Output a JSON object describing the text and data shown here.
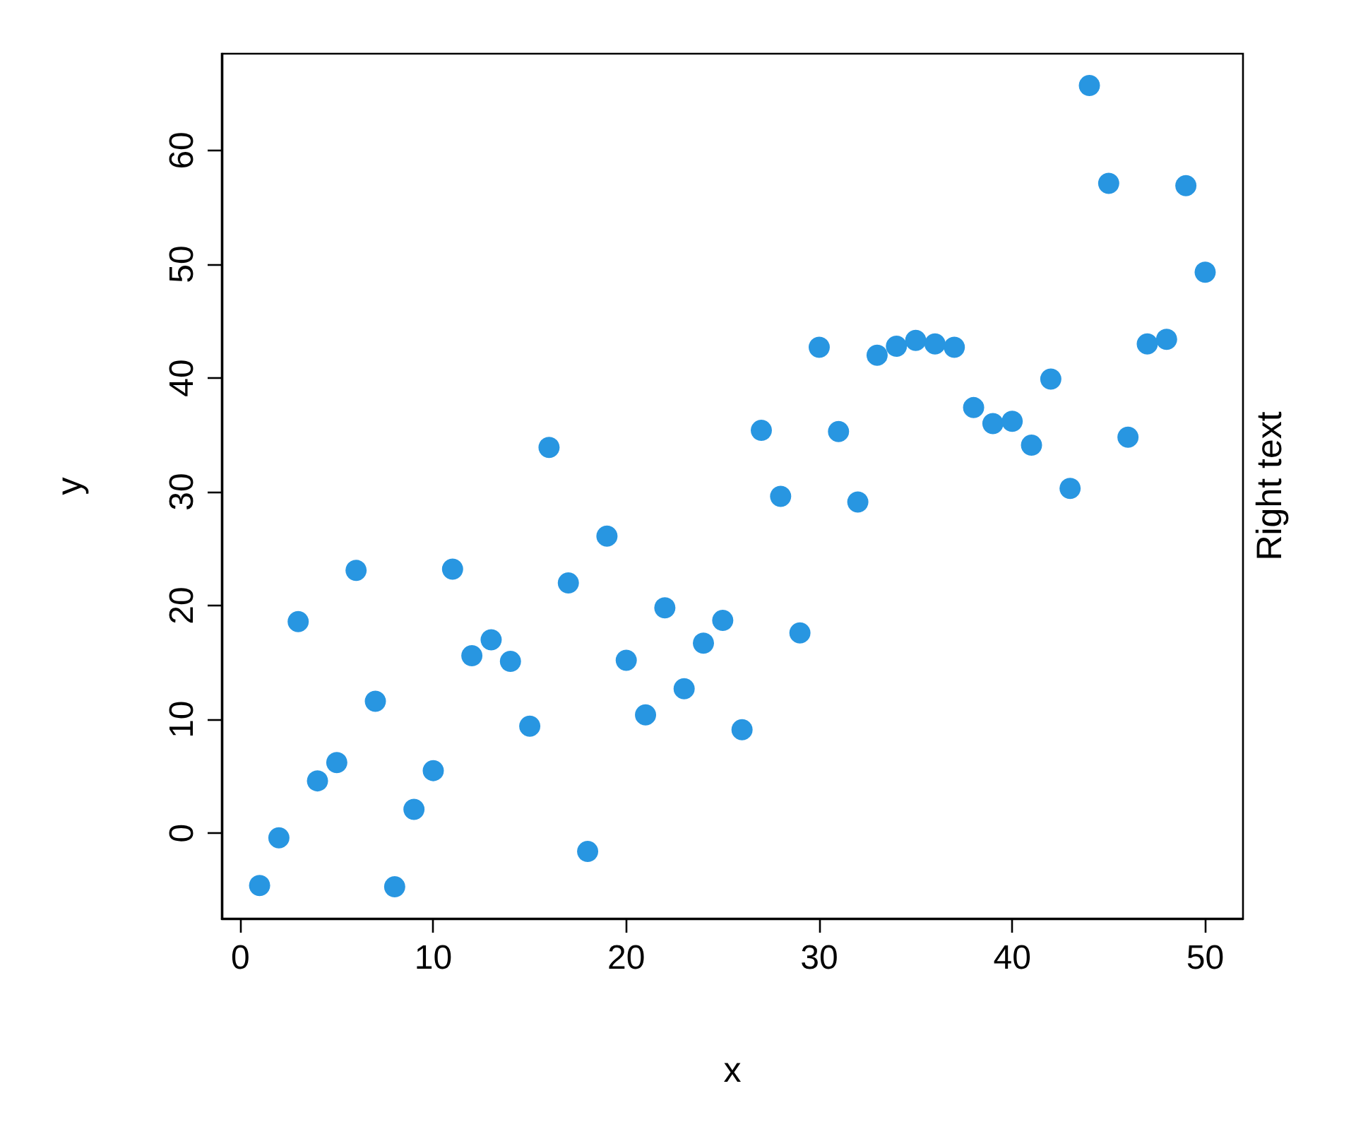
{
  "chart_data": {
    "type": "scatter",
    "xlabel": "x",
    "ylabel": "y",
    "annotations": [
      "Right text"
    ],
    "x": [
      1,
      2,
      3,
      4,
      5,
      6,
      7,
      8,
      9,
      10,
      11,
      12,
      13,
      14,
      15,
      16,
      17,
      18,
      19,
      20,
      21,
      22,
      23,
      24,
      25,
      26,
      27,
      28,
      29,
      30,
      31,
      32,
      33,
      34,
      35,
      36,
      37,
      38,
      39,
      40,
      41,
      42,
      43,
      44,
      45,
      46,
      47,
      48,
      49,
      50
    ],
    "values": [
      -4.6,
      -0.4,
      18.6,
      4.6,
      6.2,
      23.1,
      11.6,
      -4.7,
      2.1,
      5.5,
      23.2,
      15.6,
      17.0,
      15.1,
      9.4,
      33.9,
      22.0,
      -1.6,
      26.1,
      15.2,
      10.4,
      19.8,
      12.7,
      16.7,
      18.7,
      9.1,
      35.4,
      29.6,
      17.6,
      42.7,
      35.3,
      29.1,
      42.0,
      42.8,
      43.3,
      43.0,
      42.7,
      37.4,
      36.0,
      36.2,
      34.1,
      39.9,
      30.3,
      65.7,
      57.1,
      34.8,
      43.0,
      43.4,
      56.9,
      49.3
    ],
    "color": "#2896e1",
    "marker": "circle",
    "xlim": [
      -0.96,
      51.96
    ],
    "xticks": [
      0,
      10,
      20,
      30,
      40,
      50
    ],
    "ylim": [
      -7.5,
      68.5
    ],
    "yticks": [
      0,
      10,
      20,
      30,
      40,
      50,
      60
    ],
    "grid": false
  }
}
